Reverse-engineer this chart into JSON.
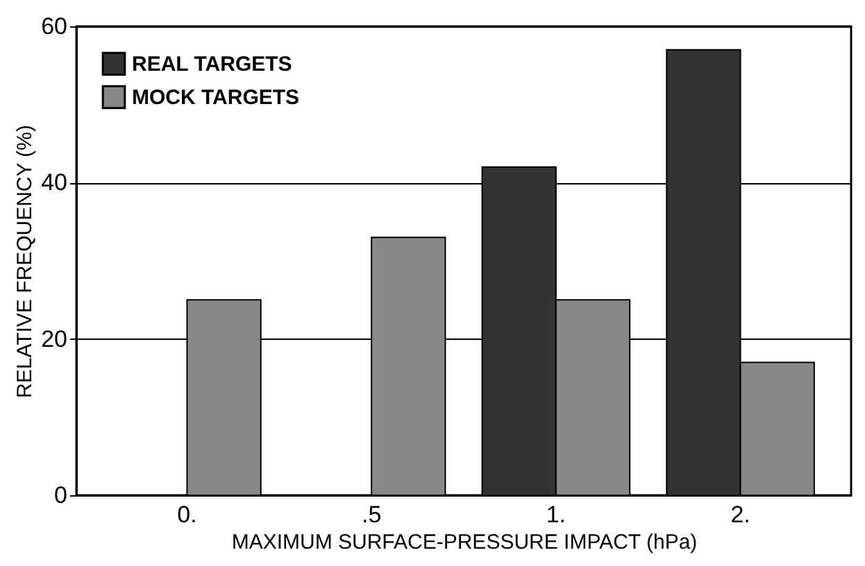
{
  "chart_data": {
    "type": "bar",
    "xlabel": "MAXIMUM SURFACE-PRESSURE IMPACT (hPa)",
    "ylabel": "RELATIVE FREQUENCY (%)",
    "categories": [
      "0.",
      ".5",
      "1.",
      "2."
    ],
    "series": [
      {
        "name": "REAL TARGETS",
        "color": "#333333",
        "values": [
          null,
          null,
          42,
          57
        ]
      },
      {
        "name": "MOCK TARGETS",
        "color": "#888888",
        "values": [
          25,
          33,
          25,
          17
        ]
      }
    ],
    "ylim": [
      0,
      60
    ],
    "yticks": [
      0,
      20,
      40,
      60
    ],
    "grid": "y",
    "legend": "top left"
  }
}
